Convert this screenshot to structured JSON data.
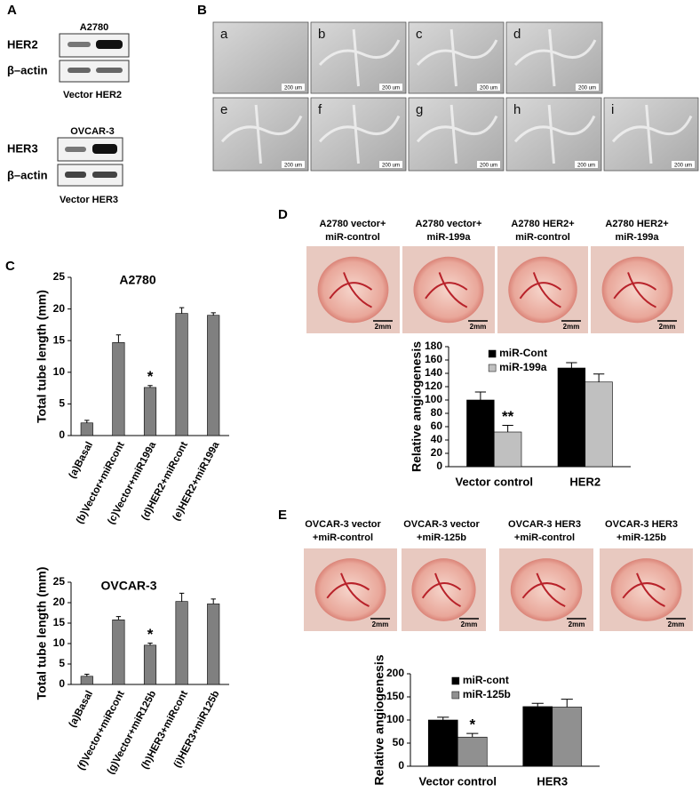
{
  "panel_labels": [
    "A",
    "B",
    "C",
    "D",
    "E"
  ],
  "panel_a": {
    "blots": [
      {
        "cell_line": "A2780",
        "bands": [
          "HER2",
          "β–actin"
        ],
        "lanes": "Vector HER2"
      },
      {
        "cell_line": "OVCAR-3",
        "bands": [
          "HER3",
          "β–actin"
        ],
        "lanes": "Vector HER3"
      }
    ]
  },
  "panel_b": {
    "images": [
      "a",
      "b",
      "c",
      "d",
      "e",
      "f",
      "g",
      "h",
      "i"
    ],
    "scale_bar": "200 um"
  },
  "panel_d": {
    "captions": [
      [
        "A2780 vector+",
        "miR-control"
      ],
      [
        "A2780 vector+",
        "miR-199a"
      ],
      [
        "A2780 HER2+",
        "miR-control"
      ],
      [
        "A2780 HER2+",
        "miR-199a"
      ]
    ],
    "scale_bar": "2mm"
  },
  "panel_e": {
    "captions": [
      [
        "OVCAR-3 vector",
        "+miR-control"
      ],
      [
        "OVCAR-3 vector",
        "+miR-125b"
      ],
      [
        "OVCAR-3 HER3",
        "+miR-control"
      ],
      [
        "OVCAR-3 HER3",
        "+miR-125b"
      ]
    ],
    "scale_bar": "2mm"
  },
  "chart_data": [
    {
      "type": "bar",
      "title": "A2780",
      "y_label": "Total tube length (mm)",
      "categories": [
        "(a)Basal",
        "(b)Vector+miRcont",
        "(c)Vector+miR199a",
        "(d)HER2+miRcont",
        "(e)HER2+miR199a"
      ],
      "values": [
        2,
        14.7,
        7.6,
        19.3,
        19
      ],
      "errors": [
        0.4,
        1.2,
        0.3,
        0.9,
        0.4
      ],
      "color": "#808080",
      "ylim": [
        0,
        25
      ],
      "yticks": [
        0,
        5,
        10,
        15,
        20,
        25
      ],
      "annotations": [
        {
          "text": "*",
          "category": "(c)Vector+miR199a"
        }
      ]
    },
    {
      "type": "bar",
      "title": "OVCAR-3",
      "y_label": "Total tube length (mm)",
      "categories": [
        "(a)Basal",
        "(f)Vector+miRcont",
        "(g)Vector+miR125b",
        "(h)HER3+miRcont",
        "(i)HER3+miR125b"
      ],
      "values": [
        2,
        15.8,
        9.6,
        20.3,
        19.7
      ],
      "errors": [
        0.5,
        0.8,
        0.5,
        2,
        1.2
      ],
      "color": "#808080",
      "ylim": [
        0,
        25
      ],
      "yticks": [
        0,
        5,
        10,
        15,
        20,
        25
      ],
      "annotations": [
        {
          "text": "*",
          "category": "(g)Vector+miR125b"
        }
      ]
    },
    {
      "type": "bar",
      "y_label": "Relative angiogenesis",
      "categories": [
        "Vector control",
        "HER2"
      ],
      "series": [
        {
          "name": "miR-Cont",
          "color": "#000000",
          "values": [
            100,
            148
          ],
          "errors": [
            12,
            8
          ]
        },
        {
          "name": "miR-199a",
          "color": "#c0c0c0",
          "values": [
            52,
            127
          ],
          "errors": [
            10,
            12
          ]
        }
      ],
      "ylim": [
        0,
        180
      ],
      "yticks": [
        0,
        20,
        40,
        60,
        80,
        100,
        120,
        140,
        160,
        180
      ],
      "legend": "top left",
      "annotations": [
        {
          "text": "**",
          "category": "Vector control",
          "series": "miR-199a"
        }
      ]
    },
    {
      "type": "bar",
      "y_label": "Relative angiogenesis",
      "categories": [
        "Vector control",
        "HER3"
      ],
      "series": [
        {
          "name": "miR-cont",
          "color": "#000000",
          "values": [
            100,
            129
          ],
          "errors": [
            6,
            7
          ]
        },
        {
          "name": "miR-125b",
          "color": "#909090",
          "values": [
            63,
            128
          ],
          "errors": [
            8,
            17
          ]
        }
      ],
      "ylim": [
        0,
        200
      ],
      "yticks": [
        0,
        50,
        100,
        150,
        200
      ],
      "legend": "top left",
      "annotations": [
        {
          "text": "*",
          "category": "Vector control",
          "series": "miR-125b"
        }
      ]
    }
  ]
}
